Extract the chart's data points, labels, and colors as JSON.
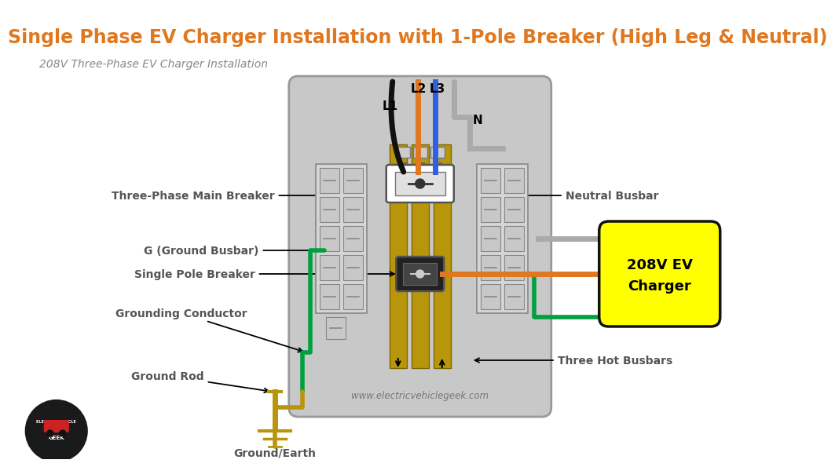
{
  "title": "Single Phase EV Charger Installation with 1-Pole Breaker (High Leg & Neutral)",
  "subtitle": "208V Three-Phase EV Charger Installation",
  "title_color": "#E07820",
  "subtitle_color": "#888888",
  "bg_color": "#FFFFFF",
  "panel_color": "#C8C8C8",
  "busbar_color": "#B8960C",
  "wire_black": "#111111",
  "wire_orange": "#E07820",
  "wire_blue": "#3060E0",
  "wire_gray": "#AAAAAA",
  "wire_green": "#00A040",
  "wire_yellow": "#B8960C",
  "charger_color": "#FFFF00",
  "charger_border": "#111111",
  "label_color": "#555555",
  "label_font": "DejaVu Sans",
  "watermark": "www.electricvehiclegeek.com"
}
